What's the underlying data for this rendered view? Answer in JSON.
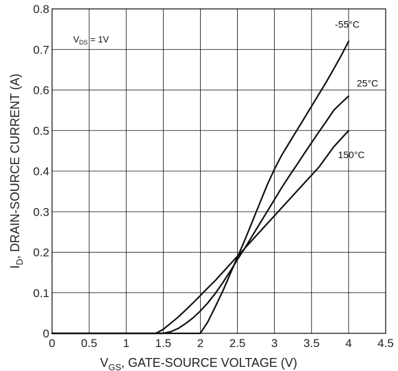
{
  "chart_data": {
    "type": "line",
    "xlabel_main": "V",
    "xlabel_sub": "GS",
    "xlabel_rest": ", GATE-SOURCE VOLTAGE (V)",
    "ylabel_main": "I",
    "ylabel_sub": "D",
    "ylabel_rest": ", DRAIN-SOURCE CURRENT (A)",
    "xlim": [
      0,
      4.5
    ],
    "ylim": [
      0,
      0.8
    ],
    "xticks": [
      "0",
      "0.5",
      "1",
      "1.5",
      "2",
      "2.5",
      "3",
      "3.5",
      "4",
      "4.5"
    ],
    "yticks": [
      "0",
      "0.1",
      "0.2",
      "0.3",
      "0.4",
      "0.5",
      "0.6",
      "0.7",
      "0.8"
    ],
    "grid": true,
    "annotation": {
      "main": "V",
      "sub": "DS",
      "rest": " = 1V"
    },
    "series": [
      {
        "name": "-55°C",
        "x": [
          0,
          2.0,
          2.1,
          2.2,
          2.3,
          2.4,
          2.5,
          2.6,
          2.7,
          2.8,
          2.9,
          3.0,
          3.1,
          3.2,
          3.3,
          3.4,
          3.5,
          3.6,
          3.7,
          3.8,
          3.9,
          4.0
        ],
        "y": [
          0,
          0,
          0.028,
          0.065,
          0.103,
          0.145,
          0.188,
          0.23,
          0.275,
          0.32,
          0.365,
          0.405,
          0.44,
          0.47,
          0.5,
          0.53,
          0.56,
          0.59,
          0.62,
          0.652,
          0.685,
          0.72
        ]
      },
      {
        "name": "25°C",
        "x": [
          0,
          1.5,
          1.6,
          1.7,
          1.8,
          1.9,
          2.0,
          2.1,
          2.2,
          2.3,
          2.4,
          2.5,
          2.6,
          2.7,
          2.8,
          2.9,
          3.0,
          3.1,
          3.2,
          3.3,
          3.4,
          3.5,
          3.6,
          3.7,
          3.8,
          3.9,
          4.0
        ],
        "y": [
          0,
          0,
          0.004,
          0.012,
          0.024,
          0.038,
          0.055,
          0.075,
          0.098,
          0.124,
          0.152,
          0.182,
          0.21,
          0.24,
          0.27,
          0.3,
          0.33,
          0.36,
          0.388,
          0.415,
          0.443,
          0.47,
          0.497,
          0.523,
          0.55,
          0.568,
          0.585
        ]
      },
      {
        "name": "150°C",
        "x": [
          0,
          1.4,
          1.5,
          1.6,
          1.7,
          1.8,
          1.9,
          2.0,
          2.1,
          2.2,
          2.3,
          2.4,
          2.5,
          2.6,
          2.7,
          2.8,
          2.9,
          3.0,
          3.1,
          3.2,
          3.3,
          3.4,
          3.5,
          3.6,
          3.7,
          3.8,
          3.9,
          4.0
        ],
        "y": [
          0,
          0,
          0.01,
          0.025,
          0.04,
          0.057,
          0.075,
          0.093,
          0.112,
          0.13,
          0.15,
          0.17,
          0.19,
          0.21,
          0.23,
          0.25,
          0.27,
          0.29,
          0.31,
          0.33,
          0.35,
          0.37,
          0.39,
          0.41,
          0.435,
          0.46,
          0.48,
          0.5
        ]
      }
    ]
  }
}
